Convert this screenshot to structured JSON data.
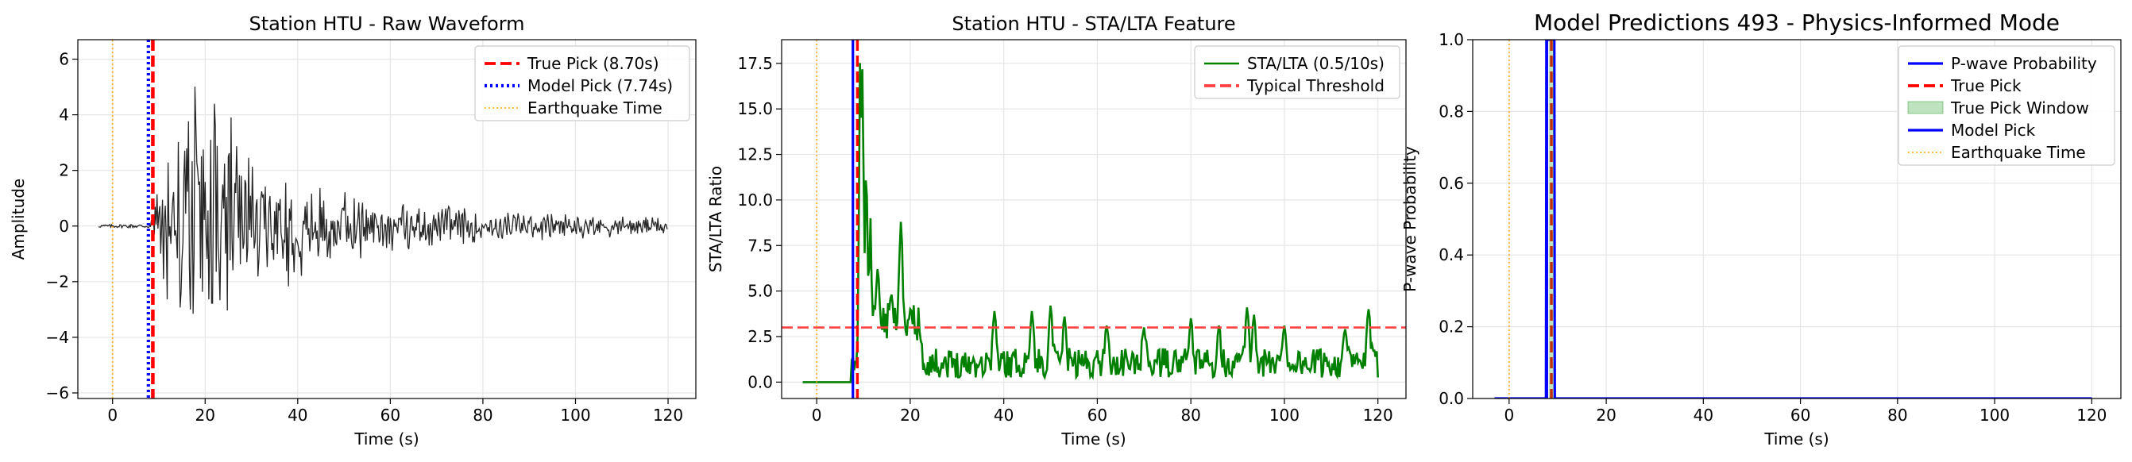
{
  "chart_data": [
    {
      "type": "line",
      "title": "Station HTU - Raw Waveform",
      "xlabel": "Time (s)",
      "ylabel": "Amplitude",
      "xlim": [
        -7.5,
        126
      ],
      "ylim": [
        -6.2,
        6.7
      ],
      "xticks": [
        0,
        20,
        40,
        60,
        80,
        100,
        120
      ],
      "yticks": [
        -6,
        -4,
        -2,
        0,
        2,
        4,
        6
      ],
      "grid": true,
      "legend_position": "top-right",
      "series": [
        {
          "name": "",
          "color": "#000000",
          "style": "solid",
          "kind": "waveform",
          "t_start": -3,
          "t_end": 120,
          "onset": 8.7,
          "envelope": [
            [
              -3,
              0.05
            ],
            [
              8,
              0.08
            ],
            [
              9,
              1.0
            ],
            [
              12,
              4.0
            ],
            [
              18,
              5.5
            ],
            [
              22,
              5.0
            ],
            [
              30,
              3.2
            ],
            [
              40,
              2.0
            ],
            [
              50,
              1.5
            ],
            [
              60,
              1.0
            ],
            [
              80,
              0.65
            ],
            [
              100,
              0.5
            ],
            [
              120,
              0.35
            ]
          ]
        },
        {
          "name": "True Pick (8.70s)",
          "color": "#ff0000",
          "style": "dashed",
          "kind": "vline",
          "x": 8.7
        },
        {
          "name": "Model Pick (7.74s)",
          "color": "#0000ff",
          "style": "dotted",
          "kind": "vline",
          "x": 7.74
        },
        {
          "name": "Earthquake Time",
          "color": "#ffa500",
          "style": "dotted-thin",
          "kind": "vline",
          "x": 0
        }
      ]
    },
    {
      "type": "line",
      "title": "Station HTU - STA/LTA Feature",
      "xlabel": "Time (s)",
      "ylabel": "STA/LTA Ratio",
      "xlim": [
        -7.5,
        126
      ],
      "ylim": [
        -0.9,
        18.8
      ],
      "xticks": [
        0,
        20,
        40,
        60,
        80,
        100,
        120
      ],
      "yticks": [
        0.0,
        2.5,
        5.0,
        7.5,
        10.0,
        12.5,
        15.0,
        17.5
      ],
      "ytick_labels": [
        "0.0",
        "2.5",
        "5.0",
        "7.5",
        "10.0",
        "12.5",
        "15.0",
        "17.5"
      ],
      "grid": true,
      "legend_position": "top-right",
      "series": [
        {
          "name": "STA/LTA (0.5/10s)",
          "color": "#008000",
          "style": "solid",
          "kind": "stalta",
          "t_start": -3,
          "t_end": 120,
          "onset": 8.7,
          "peaks": [
            [
              9.3,
              17.9
            ],
            [
              9.8,
              17.5
            ],
            [
              10.6,
              12.0
            ],
            [
              11.5,
              9.0
            ],
            [
              13,
              6.2
            ],
            [
              16,
              4.8
            ],
            [
              18,
              8.8
            ],
            [
              20,
              3.5
            ],
            [
              22,
              2.8
            ],
            [
              38,
              3.9
            ],
            [
              46,
              3.9
            ],
            [
              50,
              4.2
            ],
            [
              53,
              3.6
            ],
            [
              62,
              3.1
            ],
            [
              70,
              3.0
            ],
            [
              80,
              3.5
            ],
            [
              86,
              3.1
            ],
            [
              92,
              4.1
            ],
            [
              93.5,
              3.7
            ],
            [
              100,
              3.1
            ],
            [
              113,
              2.9
            ],
            [
              118,
              4.0
            ]
          ]
        },
        {
          "name": "Typical Threshold",
          "color": "#ff4040",
          "style": "dashed",
          "kind": "hline",
          "y": 3.0
        },
        {
          "name": "",
          "color": "#0000ff",
          "style": "solid",
          "kind": "vline",
          "x": 7.74
        },
        {
          "name": "",
          "color": "#ff0000",
          "style": "dashed",
          "kind": "vline",
          "x": 8.7
        },
        {
          "name": "",
          "color": "#ffa500",
          "style": "dotted-thin",
          "kind": "vline",
          "x": 0
        }
      ]
    },
    {
      "type": "line",
      "title": "Model Predictions 493 - Physics-Informed Mode",
      "xlabel": "Time (s)",
      "ylabel": "P-wave Probability",
      "xlim": [
        -7.5,
        126
      ],
      "ylim": [
        0.0,
        1.0
      ],
      "xticks": [
        0,
        20,
        40,
        60,
        80,
        100,
        120
      ],
      "yticks": [
        0.0,
        0.2,
        0.4,
        0.6,
        0.8,
        1.0
      ],
      "ytick_labels": [
        "0.0",
        "0.2",
        "0.4",
        "0.6",
        "0.8",
        "1.0"
      ],
      "grid": true,
      "legend_position": "top-right",
      "series": [
        {
          "name": "P-wave Probability",
          "color": "#0000ff",
          "style": "solid",
          "kind": "prob",
          "t_start": -3,
          "t_end": 120,
          "x": [
            -3,
            7.6,
            7.7,
            7.8,
            9.3,
            9.4,
            120
          ],
          "y": [
            0,
            0,
            1.0,
            1.0,
            1.0,
            0,
            0
          ]
        },
        {
          "name": "True Pick",
          "color": "#ff0000",
          "style": "dashed",
          "kind": "vline",
          "x": 8.7
        },
        {
          "name": "True Pick Window",
          "color": "#2ca02c",
          "style": "fill",
          "kind": "vspan",
          "x0": 8.2,
          "x1": 9.2
        },
        {
          "name": "Model Pick",
          "color": "#0000ff",
          "style": "solid",
          "kind": "vline",
          "x": 7.74
        },
        {
          "name": "Earthquake Time",
          "color": "#ffa500",
          "style": "dotted-thin",
          "kind": "vline",
          "x": 0
        }
      ]
    }
  ]
}
